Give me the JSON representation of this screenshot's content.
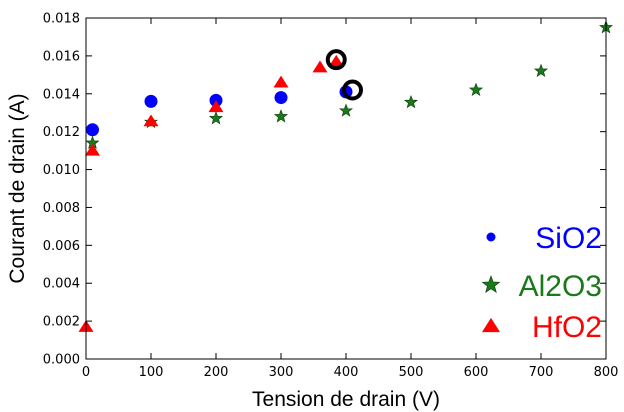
{
  "chart_data": {
    "type": "scatter",
    "xlabel": "Tension de drain (V)",
    "ylabel": "Courant de drain (A)",
    "xlim": [
      0,
      800
    ],
    "ylim": [
      0.0,
      0.018
    ],
    "x_ticks": [
      "0",
      "100",
      "200",
      "300",
      "400",
      "500",
      "600",
      "700",
      "800"
    ],
    "y_ticks": [
      "0.000",
      "0.002",
      "0.004",
      "0.006",
      "0.008",
      "0.010",
      "0.012",
      "0.014",
      "0.016",
      "0.018"
    ],
    "legend_placement": "lower-right",
    "series": [
      {
        "name": "SiO2",
        "marker": "circle",
        "color": "#0000ff",
        "x": [
          10,
          100,
          200,
          300,
          400
        ],
        "y": [
          0.0121,
          0.0136,
          0.01365,
          0.0138,
          0.0141
        ]
      },
      {
        "name": "Al2O3",
        "marker": "star",
        "color": "#1a7a1a",
        "x": [
          10,
          100,
          200,
          300,
          400,
          500,
          600,
          700,
          800
        ],
        "y": [
          0.0114,
          0.0125,
          0.0127,
          0.0128,
          0.0131,
          0.01355,
          0.0142,
          0.0152,
          0.0175
        ]
      },
      {
        "name": "HfO2",
        "marker": "triangle",
        "color": "#ff0000",
        "x": [
          0,
          10,
          100,
          200,
          300,
          360,
          385
        ],
        "y": [
          0.0017,
          0.011,
          0.01255,
          0.0133,
          0.0146,
          0.0154,
          0.0157
        ]
      }
    ],
    "annotations": [
      {
        "marker": "ring",
        "color": "#000000",
        "x": 385,
        "y": 0.0158
      },
      {
        "marker": "ring",
        "color": "#000000",
        "x": 410,
        "y": 0.0142
      }
    ]
  }
}
